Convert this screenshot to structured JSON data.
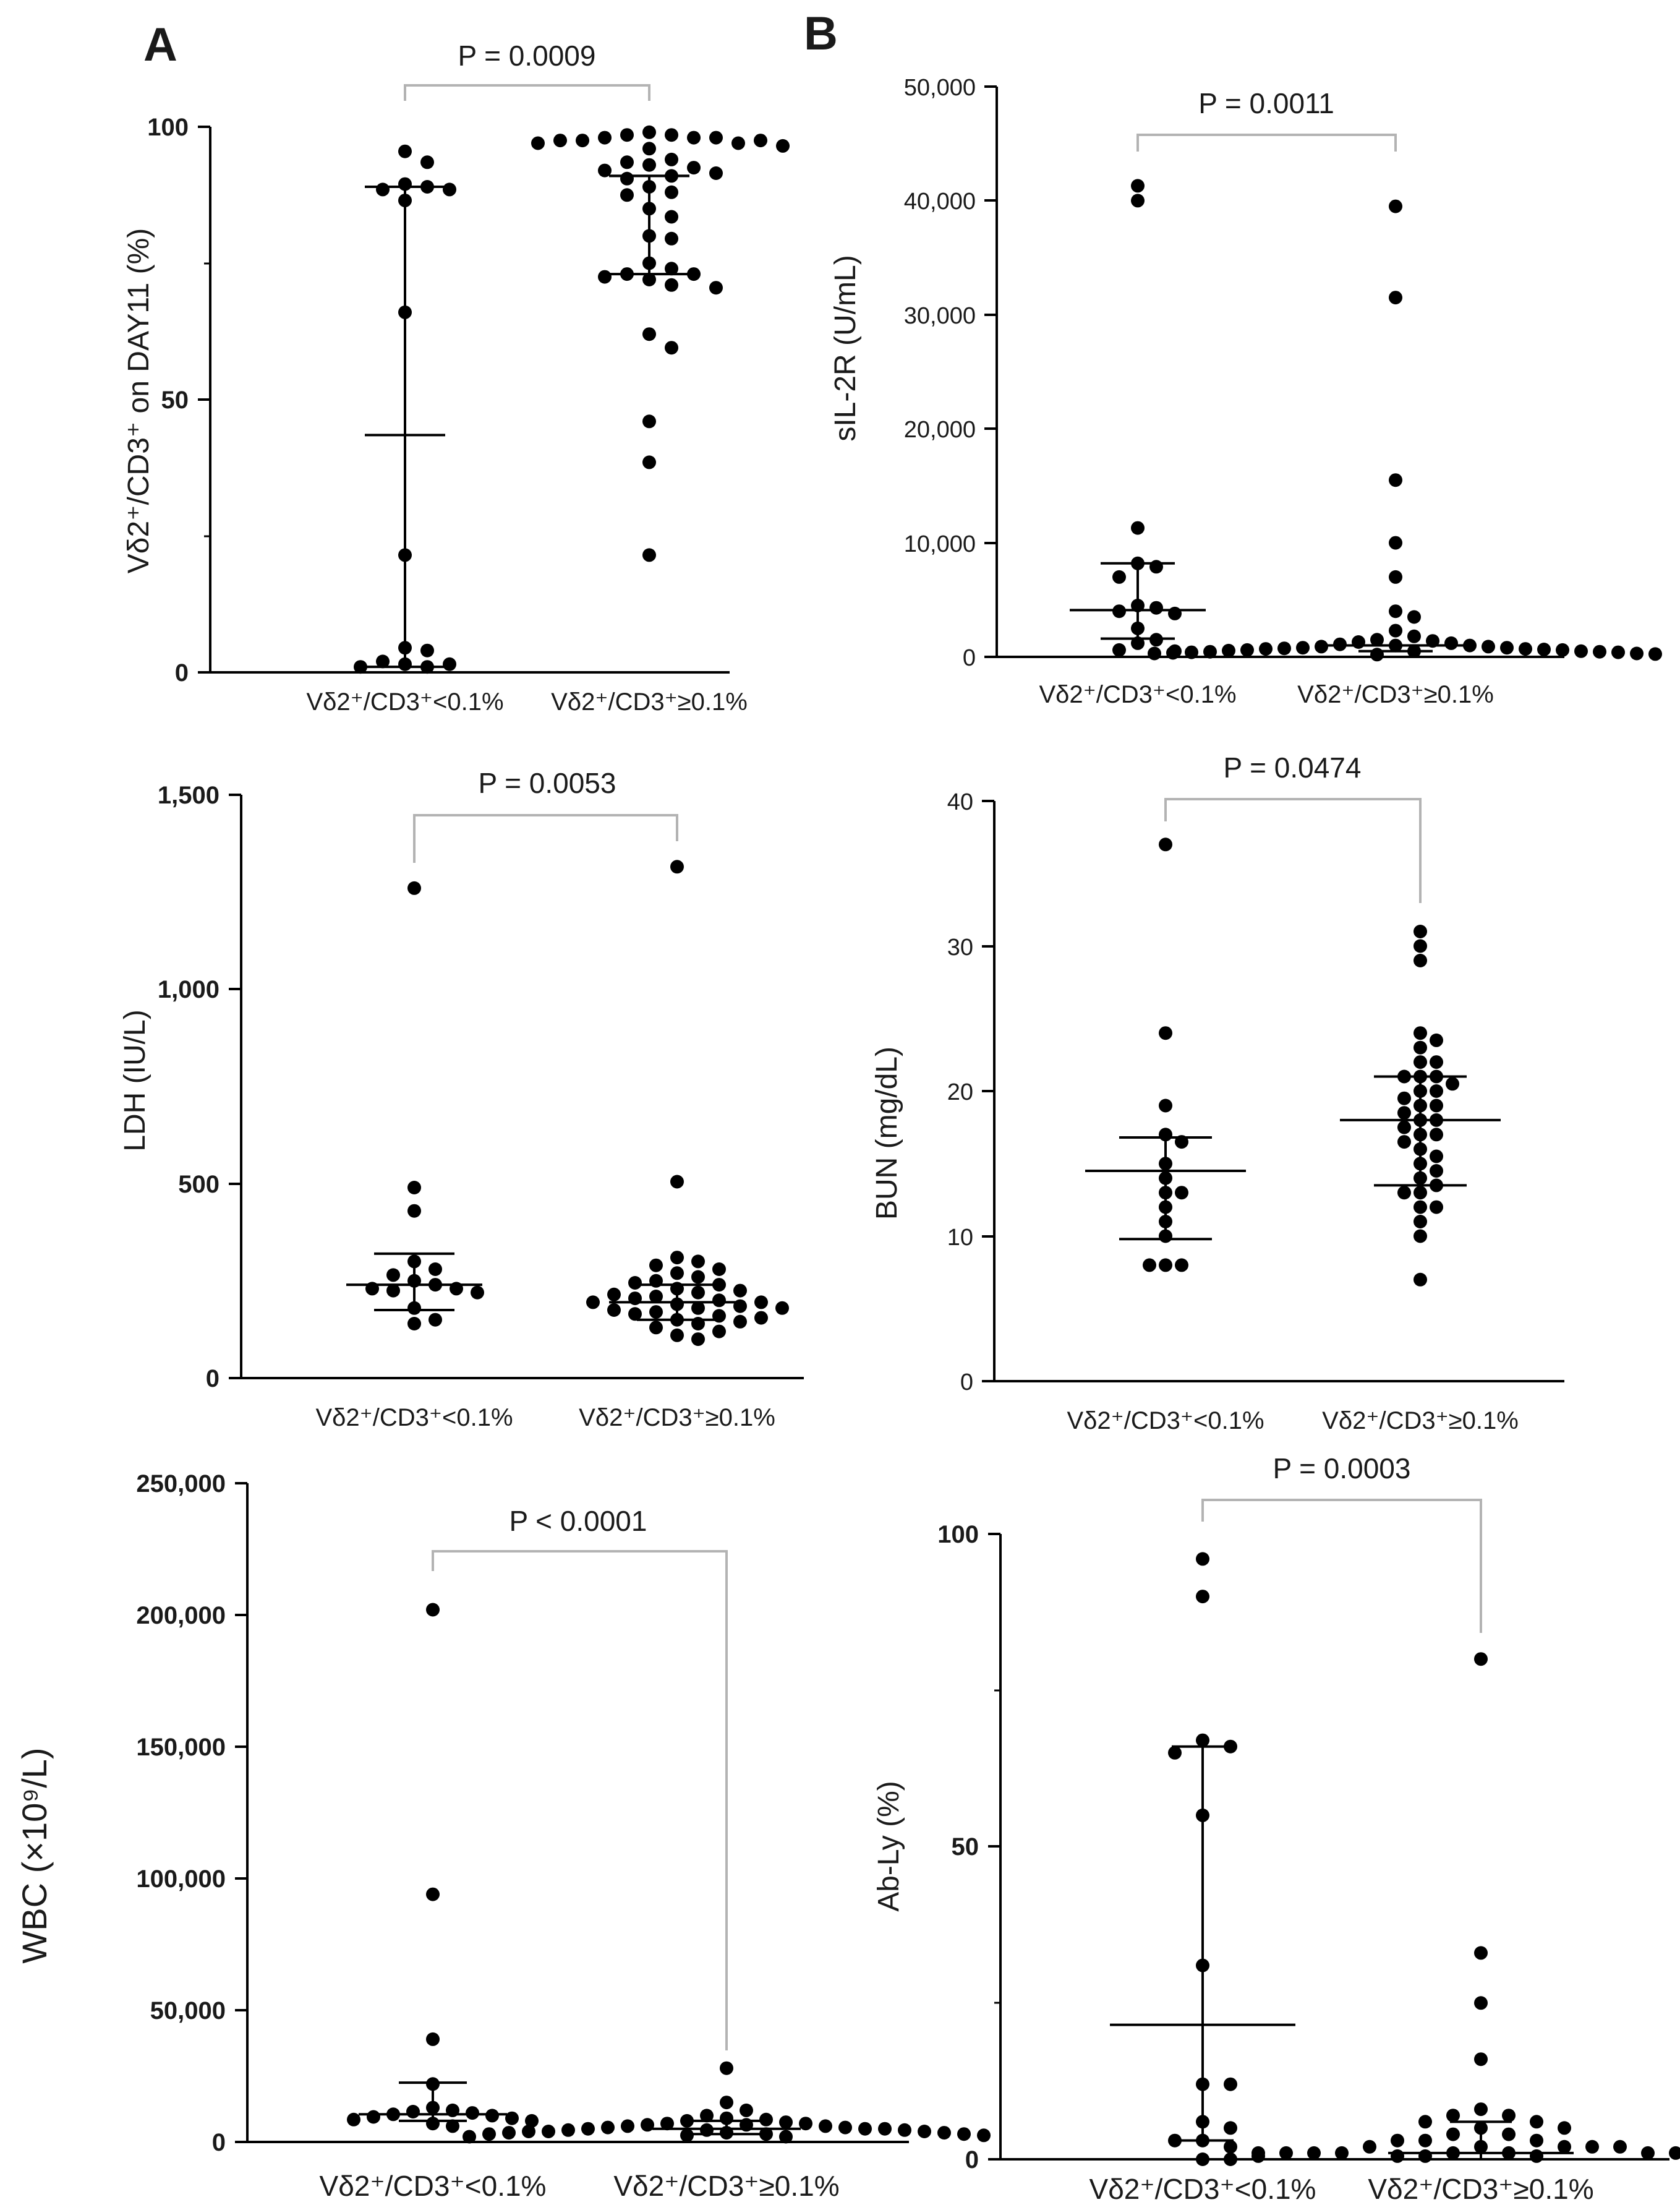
{
  "panel_labels": {
    "a": "A",
    "b": "B"
  },
  "colors": {
    "points": "#000000",
    "axes": "#000000",
    "bracket": "#b3b3b3"
  },
  "group_labels": [
    "Vδ2⁺/CD3⁺<0.1%",
    "Vδ2⁺/CD3⁺≥0.1%"
  ],
  "chart_data": [
    {
      "id": "vd2",
      "type": "scatter",
      "ylabel": "Vδ2⁺/CD3⁺ on DAY11 (%)",
      "ylim": [
        0,
        100
      ],
      "yticks": [
        0,
        50,
        100
      ],
      "ytick_labels": [
        "0",
        "50",
        "100"
      ],
      "categories": [
        "Vδ2⁺/CD3⁺<0.1%",
        "Vδ2⁺/CD3⁺≥0.1%"
      ],
      "p_value": "P = 0.0009",
      "series": [
        {
          "name": "Vδ2⁺/CD3⁺<0.1%",
          "values": [
            95.5,
            93.5,
            89.5,
            89,
            88.5,
            88.5,
            86.5,
            66,
            21.5,
            4.5,
            4,
            2,
            1.5,
            1.5,
            1,
            1
          ],
          "center": 43.5,
          "err_low": 1,
          "err_high": 89
        },
        {
          "name": "Vδ2⁺/CD3⁺≥0.1%",
          "values": [
            99,
            98.5,
            98.5,
            98,
            98,
            98,
            97.5,
            97,
            97.5,
            97.5,
            97,
            96.5,
            96,
            94,
            93.5,
            93,
            92.5,
            92,
            91.5,
            91,
            90.5,
            89,
            88,
            87.5,
            85,
            83.5,
            80,
            79.5,
            75,
            74,
            73,
            73,
            72.5,
            72,
            71,
            70.5,
            62,
            59.5,
            46,
            38.5,
            21.5
          ],
          "center": 91,
          "err_low": 73,
          "err_high": 91
        }
      ]
    },
    {
      "id": "sil2r",
      "type": "scatter",
      "ylabel": "sIL-2R (U/mL)",
      "ylim": [
        0,
        50000
      ],
      "yticks": [
        0,
        10000,
        20000,
        30000,
        40000,
        50000
      ],
      "ytick_labels": [
        "0",
        "10,000",
        "20,000",
        "30,000",
        "40,000",
        "50,000"
      ],
      "categories": [
        "Vδ2⁺/CD3⁺<0.1%",
        "Vδ2⁺/CD3⁺≥0.1%"
      ],
      "p_value": "P = 0.0011",
      "series": [
        {
          "name": "Vδ2⁺/CD3⁺<0.1%",
          "values": [
            41300,
            40000,
            11300,
            8200,
            7900,
            7000,
            4500,
            4300,
            4000,
            3800,
            2500,
            1500,
            1200,
            600,
            500
          ],
          "center": 4100,
          "err_low": 1600,
          "err_high": 8200
        },
        {
          "name": "Vδ2⁺/CD3⁺≥0.1%",
          "values": [
            39500,
            31500,
            15500,
            10000,
            7000,
            4000,
            3500,
            2300,
            1800,
            1500,
            1400,
            1300,
            1200,
            1100,
            1000,
            1000,
            900,
            900,
            800,
            800,
            750,
            700,
            700,
            650,
            600,
            600,
            550,
            500,
            500,
            450,
            450,
            400,
            400,
            350,
            300,
            300,
            250,
            200
          ],
          "center": 1000,
          "err_low": 500,
          "err_high": 1000
        }
      ]
    },
    {
      "id": "ldh",
      "type": "scatter",
      "ylabel": "LDH (IU/L)",
      "ylim": [
        0,
        1500
      ],
      "yticks": [
        0,
        500,
        1000,
        1500
      ],
      "ytick_labels": [
        "0",
        "500",
        "1,000",
        "1,500"
      ],
      "categories": [
        "Vδ2⁺/CD3⁺<0.1%",
        "Vδ2⁺/CD3⁺≥0.1%"
      ],
      "p_value": "P = 0.0053",
      "series": [
        {
          "name": "Vδ2⁺/CD3⁺<0.1%",
          "values": [
            1260,
            490,
            430,
            300,
            280,
            265,
            250,
            240,
            230,
            230,
            225,
            220,
            180,
            150,
            140
          ],
          "center": 240,
          "err_low": 175,
          "err_high": 320
        },
        {
          "name": "Vδ2⁺/CD3⁺≥0.1%",
          "values": [
            1315,
            505,
            310,
            300,
            290,
            280,
            270,
            260,
            250,
            245,
            240,
            230,
            225,
            220,
            215,
            210,
            205,
            200,
            195,
            195,
            190,
            185,
            180,
            180,
            175,
            170,
            165,
            160,
            155,
            150,
            145,
            140,
            130,
            120,
            110,
            100
          ],
          "center": 195,
          "err_low": 150,
          "err_high": 240
        }
      ]
    },
    {
      "id": "bun",
      "type": "scatter",
      "ylabel": "BUN (mg/dL)",
      "ylim": [
        0,
        40
      ],
      "yticks": [
        0,
        10,
        20,
        30,
        40
      ],
      "ytick_labels": [
        "0",
        "10",
        "20",
        "30",
        "40"
      ],
      "categories": [
        "Vδ2⁺/CD3⁺<0.1%",
        "Vδ2⁺/CD3⁺≥0.1%"
      ],
      "p_value": "P = 0.0474",
      "series": [
        {
          "name": "Vδ2⁺/CD3⁺<0.1%",
          "values": [
            37,
            24,
            19,
            17,
            16.5,
            15,
            14,
            13,
            13,
            12,
            11,
            10,
            8,
            8,
            8
          ],
          "center": 14.5,
          "err_low": 9.8,
          "err_high": 16.8
        },
        {
          "name": "Vδ2⁺/CD3⁺≥0.1%",
          "values": [
            31,
            30,
            29,
            24,
            23.5,
            23,
            22,
            22,
            21,
            21,
            21,
            20.5,
            20,
            20,
            19.5,
            19,
            19,
            18.5,
            18,
            18,
            17.5,
            17,
            17,
            16.5,
            16,
            15.5,
            15,
            14.5,
            14,
            13.5,
            13,
            13,
            12,
            12,
            11,
            10,
            7
          ],
          "center": 18,
          "err_low": 13.5,
          "err_high": 21
        }
      ]
    },
    {
      "id": "wbc",
      "type": "scatter",
      "ylabel": "WBC (×10⁹/L)",
      "ylim": [
        0,
        250000
      ],
      "yticks": [
        0,
        50000,
        100000,
        150000,
        200000,
        250000
      ],
      "ytick_labels": [
        "0",
        "50,000",
        "100,000",
        "150,000",
        "200,000",
        "250,000"
      ],
      "categories": [
        "Vδ2⁺/CD3⁺<0.1%",
        "Vδ2⁺/CD3⁺≥0.1%"
      ],
      "p_value": "P < 0.0001",
      "series": [
        {
          "name": "Vδ2⁺/CD3⁺<0.1%",
          "values": [
            202000,
            94000,
            39000,
            22000,
            13000,
            12000,
            11500,
            11000,
            10500,
            10000,
            9500,
            9000,
            8500,
            8000,
            7000,
            6000
          ],
          "center": 10500,
          "err_low": 8000,
          "err_high": 22500
        },
        {
          "name": "Vδ2⁺/CD3⁺≥0.1%",
          "values": [
            28000,
            15000,
            12000,
            10000,
            9000,
            8500,
            8000,
            7500,
            7000,
            7000,
            6500,
            6500,
            6000,
            6000,
            5500,
            5500,
            5000,
            5000,
            5000,
            4500,
            4500,
            4500,
            4000,
            4000,
            4000,
            3500,
            3500,
            3500,
            3000,
            3000,
            3000,
            2500,
            2500,
            2000,
            2000
          ],
          "center": 5000,
          "err_low": 3000,
          "err_high": 8000
        }
      ]
    },
    {
      "id": "ably",
      "type": "scatter",
      "ylabel": "Ab-Ly (%)",
      "ylim": [
        0,
        100
      ],
      "yticks": [
        0,
        50,
        100
      ],
      "ytick_labels": [
        "0",
        "50",
        "100"
      ],
      "categories": [
        "Vδ2⁺/CD3⁺<0.1%",
        "Vδ2⁺/CD3⁺≥0.1%"
      ],
      "p_value": "P = 0.0003",
      "series": [
        {
          "name": "Vδ2⁺/CD3⁺<0.1%",
          "values": [
            96,
            90,
            67,
            66,
            65,
            55,
            31,
            12,
            12,
            6,
            5,
            3,
            3,
            2,
            1
          ],
          "center": 21.5,
          "err_low": 3,
          "err_high": 66
        },
        {
          "name": "Vδ2⁺/CD3⁺≥0.1%",
          "values": [
            80,
            33,
            25,
            16,
            8,
            7,
            7,
            6,
            6,
            5,
            5,
            4,
            4,
            3,
            3,
            3,
            2,
            2,
            2,
            2,
            2,
            1,
            1,
            1,
            1,
            1,
            1,
            1,
            0.5,
            0.5,
            0.5,
            0.5,
            0.5,
            0,
            0,
            0,
            0,
            0
          ],
          "center": 1,
          "err_low": 0,
          "err_high": 6
        }
      ]
    }
  ]
}
